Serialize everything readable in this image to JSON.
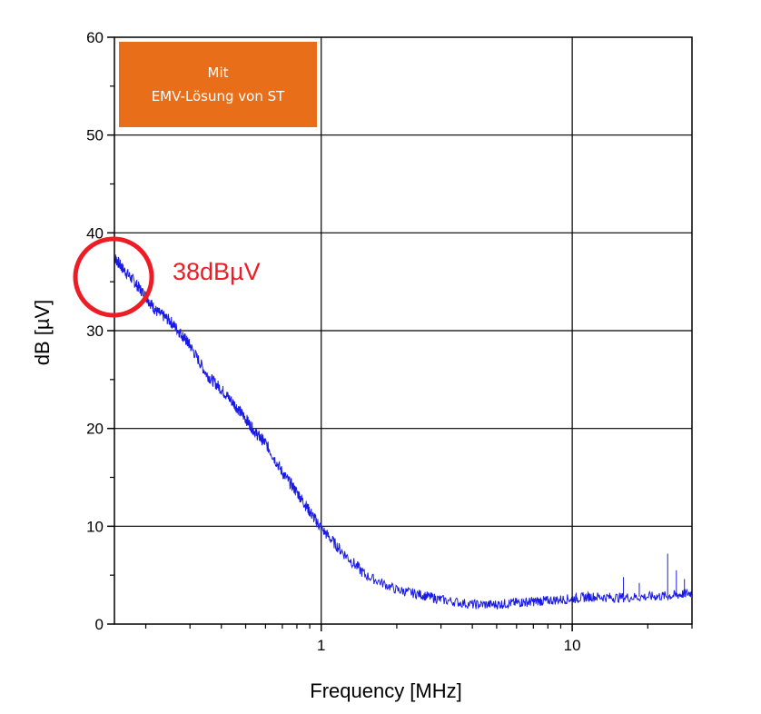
{
  "chart_data": {
    "type": "line",
    "title": "",
    "xlabel": "Frequency [MHz]",
    "ylabel": "dB [µV]",
    "x_scale": "log",
    "xlim": [
      0.15,
      30
    ],
    "ylim": [
      0,
      60
    ],
    "x_ticks": [
      {
        "value": 1,
        "label": "1"
      },
      {
        "value": 10,
        "label": "10"
      }
    ],
    "y_ticks": [
      {
        "value": 0,
        "label": "0"
      },
      {
        "value": 10,
        "label": "10"
      },
      {
        "value": 20,
        "label": "20"
      },
      {
        "value": 30,
        "label": "30"
      },
      {
        "value": 40,
        "label": "40"
      },
      {
        "value": 50,
        "label": "50"
      },
      {
        "value": 60,
        "label": "60"
      }
    ],
    "grid": true,
    "legend": {
      "lines": [
        "Mit",
        "EMV-Lösung von ST"
      ],
      "placement": "top-left",
      "background": "#e86e1a"
    },
    "annotation": {
      "text": "38dBµV",
      "x": 0.15,
      "y": 35,
      "color": "#ee1c24"
    },
    "series": [
      {
        "color": "#1a1ae6",
        "x": [
          0.15,
          0.16,
          0.18,
          0.2,
          0.22,
          0.25,
          0.28,
          0.3,
          0.35,
          0.4,
          0.45,
          0.5,
          0.55,
          0.6,
          0.7,
          0.8,
          0.9,
          1.0,
          1.2,
          1.5,
          2.0,
          2.5,
          3.0,
          4.0,
          5.0,
          6.0,
          7.0,
          8.0,
          10.0,
          12.0,
          15.0,
          20.0,
          25.0,
          30.0
        ],
        "y": [
          37.5,
          36.5,
          35,
          33.5,
          32,
          31,
          29.5,
          28.5,
          25.5,
          24,
          22.5,
          21,
          19.5,
          18.5,
          15.5,
          13.5,
          11.5,
          9.8,
          7.5,
          5,
          3.5,
          3,
          2.5,
          2,
          2,
          2.2,
          2.3,
          2.4,
          2.6,
          2.8,
          2.7,
          2.8,
          2.9,
          3.2
        ]
      }
    ],
    "spikes": [
      {
        "x": 16,
        "y": 4.8
      },
      {
        "x": 18.5,
        "y": 4.2
      },
      {
        "x": 24,
        "y": 7.2
      },
      {
        "x": 26,
        "y": 5.5
      },
      {
        "x": 28,
        "y": 4.6
      }
    ]
  }
}
